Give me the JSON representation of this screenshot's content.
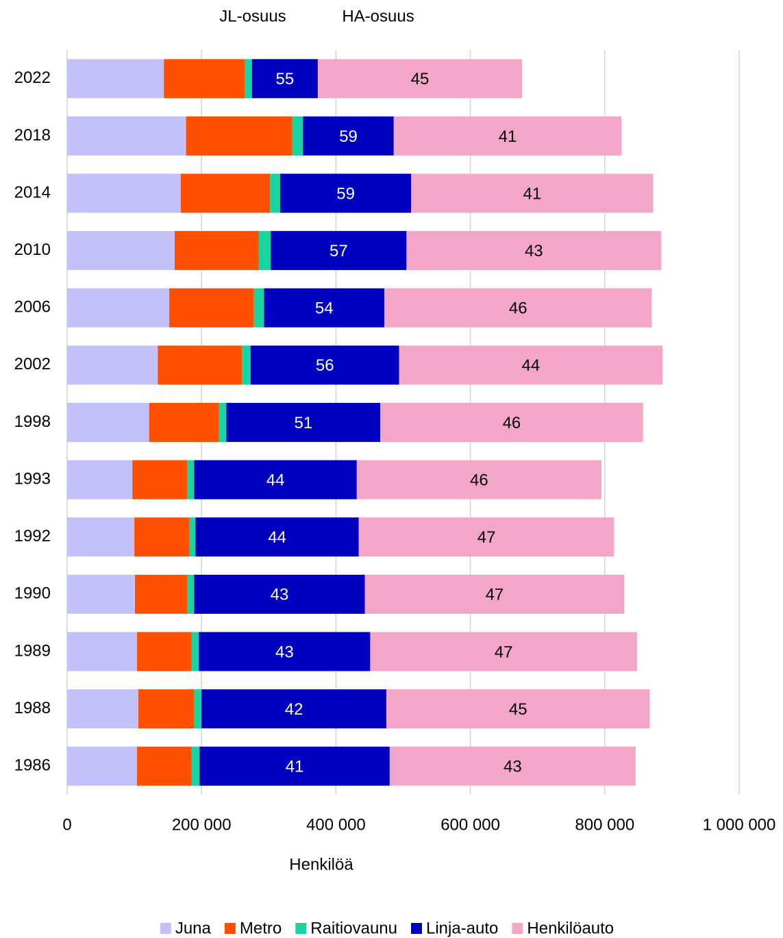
{
  "chart_data": {
    "type": "stacked-barh",
    "xlabel": "Henkilöä",
    "categories": [
      "2022",
      "2018",
      "2014",
      "2010",
      "2006",
      "2002",
      "1998",
      "1993",
      "1992",
      "1990",
      "1989",
      "1988",
      "1986"
    ],
    "series": [
      {
        "name": "Juna",
        "color": "#c3c1f9",
        "values": [
          144000,
          177000,
          169000,
          160000,
          152000,
          135000,
          122000,
          97000,
          100000,
          101000,
          104000,
          106000,
          104000
        ]
      },
      {
        "name": "Metro",
        "color": "#ff5000",
        "values": [
          120000,
          158000,
          133000,
          125000,
          126000,
          125000,
          104000,
          82000,
          82000,
          78000,
          81000,
          83000,
          81000
        ]
      },
      {
        "name": "Raitiovaunu",
        "color": "#19d3a0",
        "values": [
          11000,
          16000,
          15000,
          18000,
          15000,
          13000,
          11000,
          10000,
          9000,
          10000,
          11000,
          11000,
          12000
        ]
      },
      {
        "name": "Linja-auto",
        "color": "#0000c0",
        "values": [
          98000,
          135000,
          195000,
          202000,
          179000,
          221000,
          229000,
          242000,
          243000,
          254000,
          255000,
          275000,
          283000
        ]
      },
      {
        "name": "Henkilöauto",
        "color": "#f4a6c8",
        "values": [
          304000,
          339000,
          360000,
          379000,
          398000,
          392000,
          391000,
          364000,
          380000,
          386000,
          397000,
          392000,
          366000
        ]
      }
    ],
    "share_columns": [
      {
        "name": "JL-osuus",
        "values": [
          55,
          59,
          59,
          57,
          54,
          56,
          51,
          44,
          44,
          43,
          43,
          42,
          41
        ]
      },
      {
        "name": "HA-osuus",
        "values": [
          45,
          41,
          41,
          43,
          46,
          44,
          46,
          46,
          47,
          47,
          47,
          45,
          43
        ]
      }
    ],
    "xlim": [
      0,
      1000000
    ],
    "xticks": [
      0,
      {
        "value": 200000,
        "label": "200 000"
      },
      {
        "value": 400000,
        "label": "400 000"
      },
      {
        "value": 600000,
        "label": "600 000"
      },
      {
        "value": 800000,
        "label": "800 000"
      },
      {
        "value": 1000000,
        "label": "1 000 000"
      }
    ],
    "grid": true,
    "legend": "bottom"
  }
}
